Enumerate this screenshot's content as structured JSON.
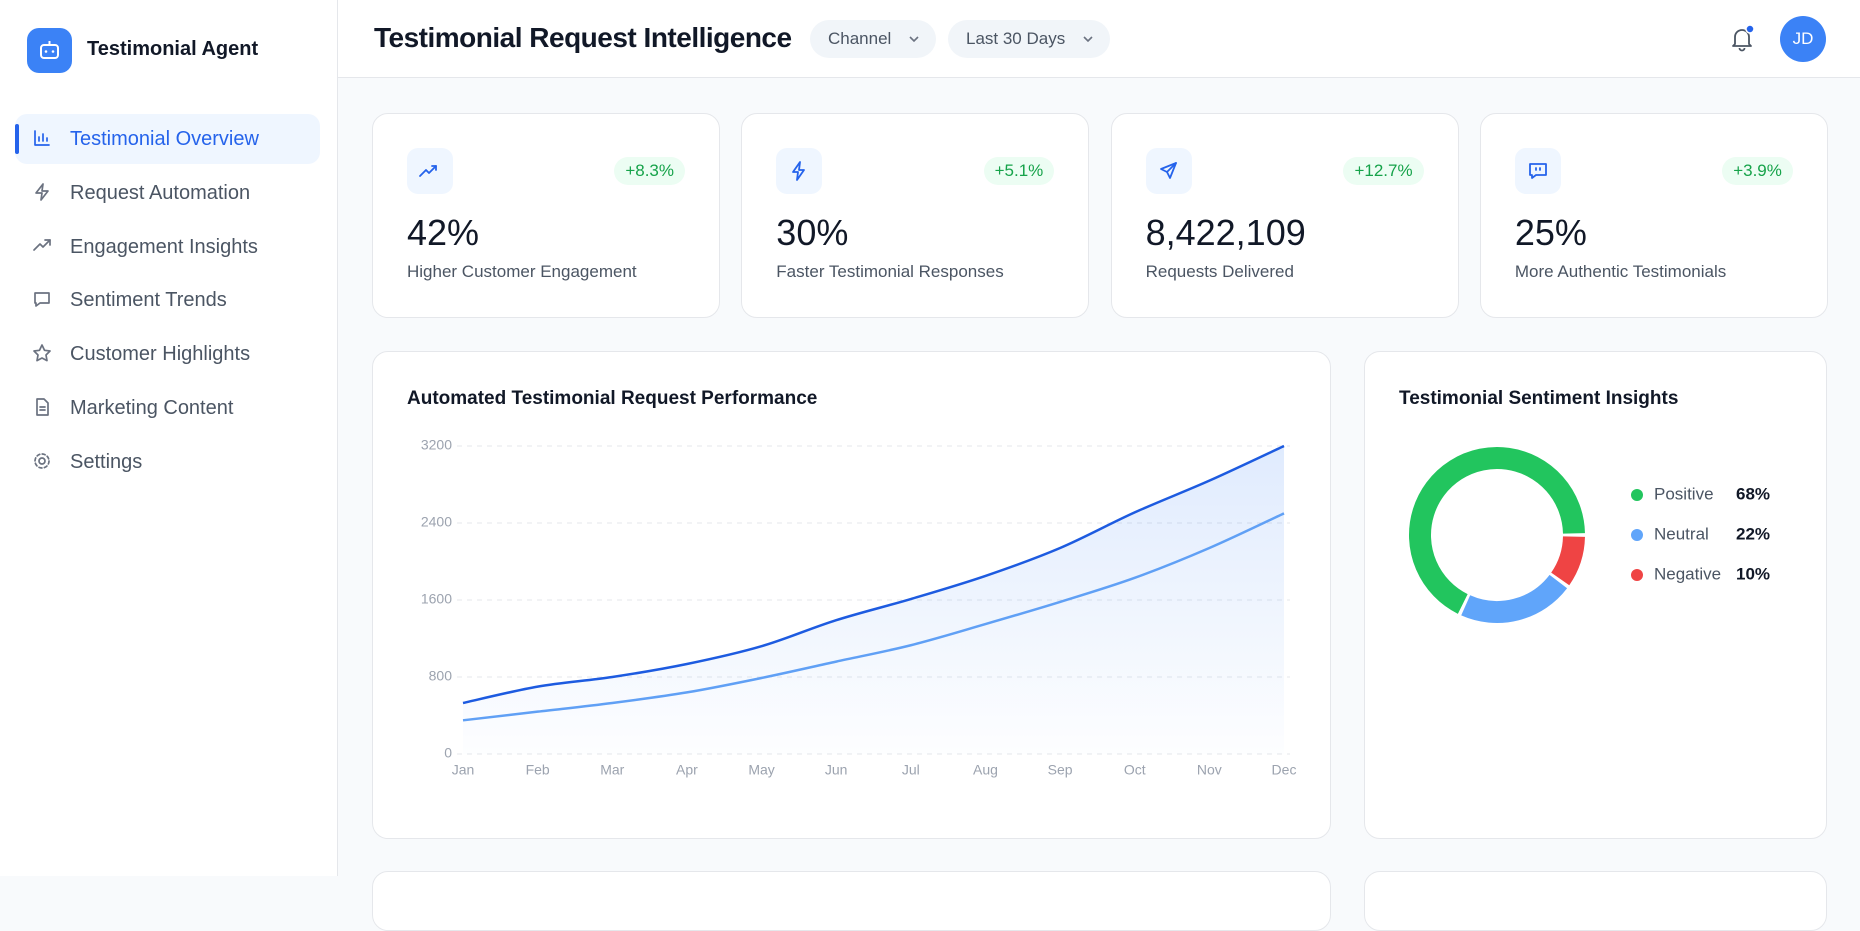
{
  "sidebar": {
    "brand": "Testimonial Agent",
    "nav": [
      "Testimonial Overview",
      "Request Automation",
      "Engagement Insights",
      "Sentiment Trends",
      "Customer Highlights",
      "Marketing Content",
      "Settings"
    ]
  },
  "header": {
    "title": "Testimonial Request Intelligence",
    "filters": [
      "Channel",
      "Last 30 Days"
    ],
    "avatar": "JD"
  },
  "kpis": [
    {
      "change": "+8.3%",
      "value": "42%",
      "label": "Higher Customer Engagement"
    },
    {
      "change": "+5.1%",
      "value": "30%",
      "label": "Faster Testimonial Responses"
    },
    {
      "change": "+12.7%",
      "value": "8,422,109",
      "label": "Requests Delivered"
    },
    {
      "change": "+3.9%",
      "value": "25%",
      "label": "More Authentic Testimonials"
    }
  ],
  "chart_data": [
    {
      "type": "line",
      "title": "Automated Testimonial Request Performance",
      "categories": [
        "Jan",
        "Feb",
        "Mar",
        "Apr",
        "May",
        "Jun",
        "Jul",
        "Aug",
        "Sep",
        "Oct",
        "Nov",
        "Dec"
      ],
      "series": [
        {
          "color": "#1d5be0",
          "values": [
            530,
            700,
            800,
            935,
            1120,
            1390,
            1610,
            1850,
            2140,
            2510,
            2840,
            3200
          ]
        },
        {
          "color": "#60a0f5",
          "values": [
            350,
            440,
            530,
            640,
            790,
            960,
            1130,
            1350,
            1580,
            1830,
            2140,
            2500
          ]
        }
      ],
      "ylim": [
        0,
        3200
      ],
      "yticks": [
        0,
        800,
        1600,
        2400,
        3200
      ],
      "grid": true
    },
    {
      "type": "donut",
      "title": "Testimonial Sentiment Insights",
      "categories": [
        "Positive",
        "Neutral",
        "Negative"
      ],
      "values": [
        68,
        22,
        10
      ],
      "value_labels": [
        "68%",
        "22%",
        "10%"
      ],
      "colors": [
        "#22c55e",
        "#60a5fa",
        "#ef4444"
      ]
    }
  ]
}
